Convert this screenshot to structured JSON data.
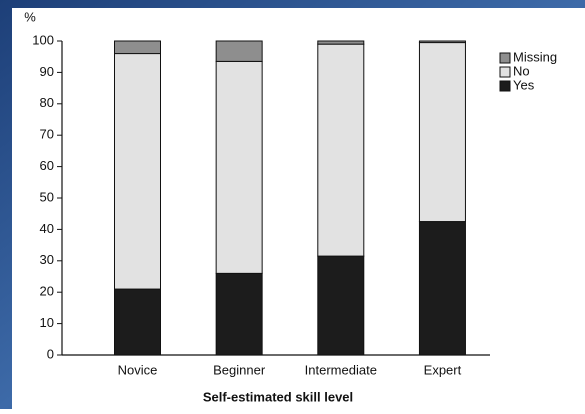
{
  "chart_data": {
    "type": "stacked_bar",
    "y_label": "%",
    "x_label": "Self-estimated skill level",
    "categories": [
      "Novice",
      "Beginner",
      "Intermediate",
      "Expert"
    ],
    "series": [
      {
        "name": "Yes",
        "color": "#1c1c1c",
        "values": [
          21,
          26,
          31.5,
          42.5
        ]
      },
      {
        "name": "No",
        "color": "#e2e2e2",
        "values": [
          75,
          67.5,
          67.5,
          57
        ]
      },
      {
        "name": "Missing",
        "color": "#8e8e8e",
        "values": [
          4,
          6.5,
          1,
          0.5
        ]
      }
    ],
    "ylim": [
      0,
      100
    ],
    "yticks": [
      0,
      10,
      20,
      30,
      40,
      50,
      60,
      70,
      80,
      90,
      100
    ],
    "legend": "right"
  }
}
